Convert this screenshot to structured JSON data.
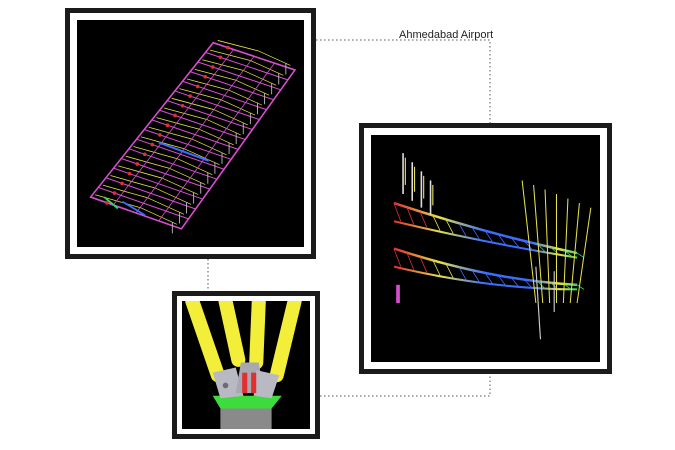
{
  "caption": {
    "title": "Ahmedabad Airport"
  },
  "panels": [
    {
      "name": "roof-truss-plan-render",
      "icon": "wireframe-model"
    },
    {
      "name": "truss-section-render",
      "icon": "wireframe-model"
    },
    {
      "name": "column-base-node-render",
      "icon": "solid-model"
    }
  ],
  "colors": {
    "frame": "#1b1b1b",
    "viewport": "#000000",
    "wire_magenta": "#d64fd0",
    "wire_yellow": "#e6e24a",
    "wire_blue": "#3a6dff",
    "wire_green": "#39d66a",
    "wire_red": "#e03030",
    "column_yellow": "#f3ee3a",
    "base_green": "#3cdc3c",
    "pedestal_grey": "#8a8a8a"
  }
}
